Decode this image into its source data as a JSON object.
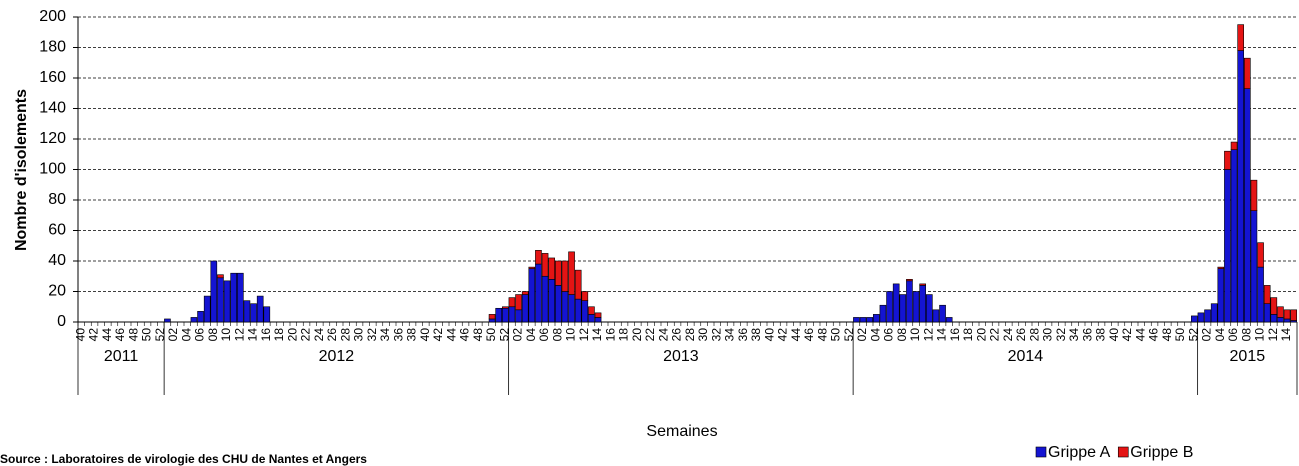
{
  "chart_data": {
    "type": "stacked_bar",
    "y_label": "Nombre d'isolements",
    "x_label": "Semaines",
    "source": "Source : Laboratoires de virologie des CHU de Nantes et Angers",
    "years": [
      "2011",
      "2012",
      "2013",
      "2014",
      "2015"
    ],
    "categories": [
      "40",
      null,
      "42",
      null,
      "44",
      null,
      "46",
      null,
      "48",
      null,
      "50",
      null,
      "52",
      null,
      "02",
      null,
      "04",
      null,
      "06",
      null,
      "08",
      null,
      "10",
      null,
      "12",
      null,
      "14",
      null,
      "16",
      null,
      "18",
      null,
      "20",
      null,
      "22",
      null,
      "24",
      null,
      "26",
      null,
      "28",
      null,
      "30",
      null,
      "32",
      null,
      "34",
      null,
      "36",
      null,
      "38",
      null,
      "40",
      null,
      "42",
      null,
      "44",
      null,
      "46",
      null,
      "48",
      null,
      "50",
      null,
      "52",
      null,
      "02",
      null,
      "04",
      null,
      "06",
      null,
      "08",
      null,
      "10",
      null,
      "12",
      null,
      "14",
      null,
      "16",
      null,
      "18",
      null,
      "20",
      null,
      "22",
      null,
      "24",
      null,
      "26",
      null,
      "28",
      null,
      "30",
      null,
      "32",
      null,
      "34",
      null,
      "36",
      null,
      "38",
      null,
      "40",
      null,
      "42",
      null,
      "44",
      null,
      "46",
      null,
      "48",
      null,
      "50",
      null,
      "52",
      null,
      "02",
      null,
      "04",
      null,
      "06",
      null,
      "08",
      null,
      "10",
      null,
      "12",
      null,
      "14",
      null,
      "16",
      null,
      "18",
      null,
      "20",
      null,
      "22",
      null,
      "24",
      null,
      "26",
      null,
      "28",
      null,
      "30",
      null,
      "32",
      null,
      "34",
      null,
      "36",
      null,
      "38",
      null,
      "40",
      null,
      "42",
      null,
      "44",
      null,
      "46",
      null,
      "48",
      null,
      "50",
      null,
      "52",
      null,
      "02",
      null,
      "04",
      null,
      "06",
      null,
      "08",
      null,
      "10",
      null,
      "12",
      null,
      "14",
      null
    ],
    "series": [
      {
        "name": "Grippe A",
        "color": "#1414d2",
        "values": [
          0,
          0,
          0,
          0,
          0,
          0,
          0,
          0,
          0,
          0,
          0,
          0,
          0,
          2,
          0,
          0,
          0,
          3,
          7,
          17,
          40,
          29,
          27,
          32,
          32,
          14,
          12,
          17,
          10,
          0,
          0,
          0,
          0,
          0,
          0,
          0,
          0,
          0,
          0,
          0,
          0,
          0,
          0,
          0,
          0,
          0,
          0,
          0,
          0,
          0,
          0,
          0,
          0,
          0,
          0,
          0,
          0,
          0,
          0,
          0,
          0,
          0,
          2,
          9,
          9,
          10,
          8,
          18,
          35,
          38,
          30,
          28,
          24,
          20,
          18,
          15,
          14,
          5,
          3,
          0,
          0,
          0,
          0,
          0,
          0,
          0,
          0,
          0,
          0,
          0,
          0,
          0,
          0,
          0,
          0,
          0,
          0,
          0,
          0,
          0,
          0,
          0,
          0,
          0,
          0,
          0,
          0,
          0,
          0,
          0,
          0,
          0,
          0,
          0,
          0,
          0,
          0,
          3,
          3,
          3,
          5,
          11,
          20,
          25,
          18,
          27,
          20,
          24,
          18,
          8,
          11,
          3,
          0,
          0,
          0,
          0,
          0,
          0,
          0,
          0,
          0,
          0,
          0,
          0,
          0,
          0,
          0,
          0,
          0,
          0,
          0,
          0,
          0,
          0,
          0,
          0,
          0,
          0,
          0,
          0,
          0,
          0,
          0,
          0,
          0,
          0,
          0,
          0,
          4,
          6,
          8,
          12,
          35,
          100,
          113,
          178,
          153,
          73,
          36,
          12,
          5,
          3,
          2,
          1
        ]
      },
      {
        "name": "Grippe B",
        "color": "#e41414",
        "values": [
          0,
          0,
          0,
          0,
          0,
          0,
          0,
          0,
          0,
          0,
          0,
          0,
          0,
          0,
          0,
          0,
          0,
          0,
          0,
          0,
          0,
          2,
          0,
          0,
          0,
          0,
          0,
          0,
          0,
          0,
          0,
          0,
          0,
          0,
          0,
          0,
          0,
          0,
          0,
          0,
          0,
          0,
          0,
          0,
          0,
          0,
          0,
          0,
          0,
          0,
          0,
          0,
          0,
          0,
          0,
          0,
          0,
          0,
          0,
          0,
          0,
          0,
          3,
          0,
          1,
          6,
          10,
          2,
          1,
          9,
          15,
          14,
          16,
          20,
          28,
          19,
          6,
          5,
          3,
          0,
          0,
          0,
          0,
          0,
          0,
          0,
          0,
          0,
          0,
          0,
          0,
          0,
          0,
          0,
          0,
          0,
          0,
          0,
          0,
          0,
          0,
          0,
          0,
          0,
          0,
          0,
          0,
          0,
          0,
          0,
          0,
          0,
          0,
          0,
          0,
          0,
          0,
          0,
          0,
          0,
          0,
          0,
          0,
          0,
          0,
          1,
          0,
          1,
          0,
          0,
          0,
          0,
          0,
          0,
          0,
          0,
          0,
          0,
          0,
          0,
          0,
          0,
          0,
          0,
          0,
          0,
          0,
          0,
          0,
          0,
          0,
          0,
          0,
          0,
          0,
          0,
          0,
          0,
          0,
          0,
          0,
          0,
          0,
          0,
          0,
          0,
          0,
          0,
          0,
          0,
          0,
          0,
          1,
          12,
          5,
          17,
          20,
          20,
          16,
          12,
          11,
          7,
          6,
          7
        ]
      }
    ],
    "ylim": [
      0,
      200
    ],
    "yticks": [
      0,
      20,
      40,
      60,
      80,
      100,
      120,
      140,
      160,
      180,
      200
    ],
    "grid": true
  }
}
